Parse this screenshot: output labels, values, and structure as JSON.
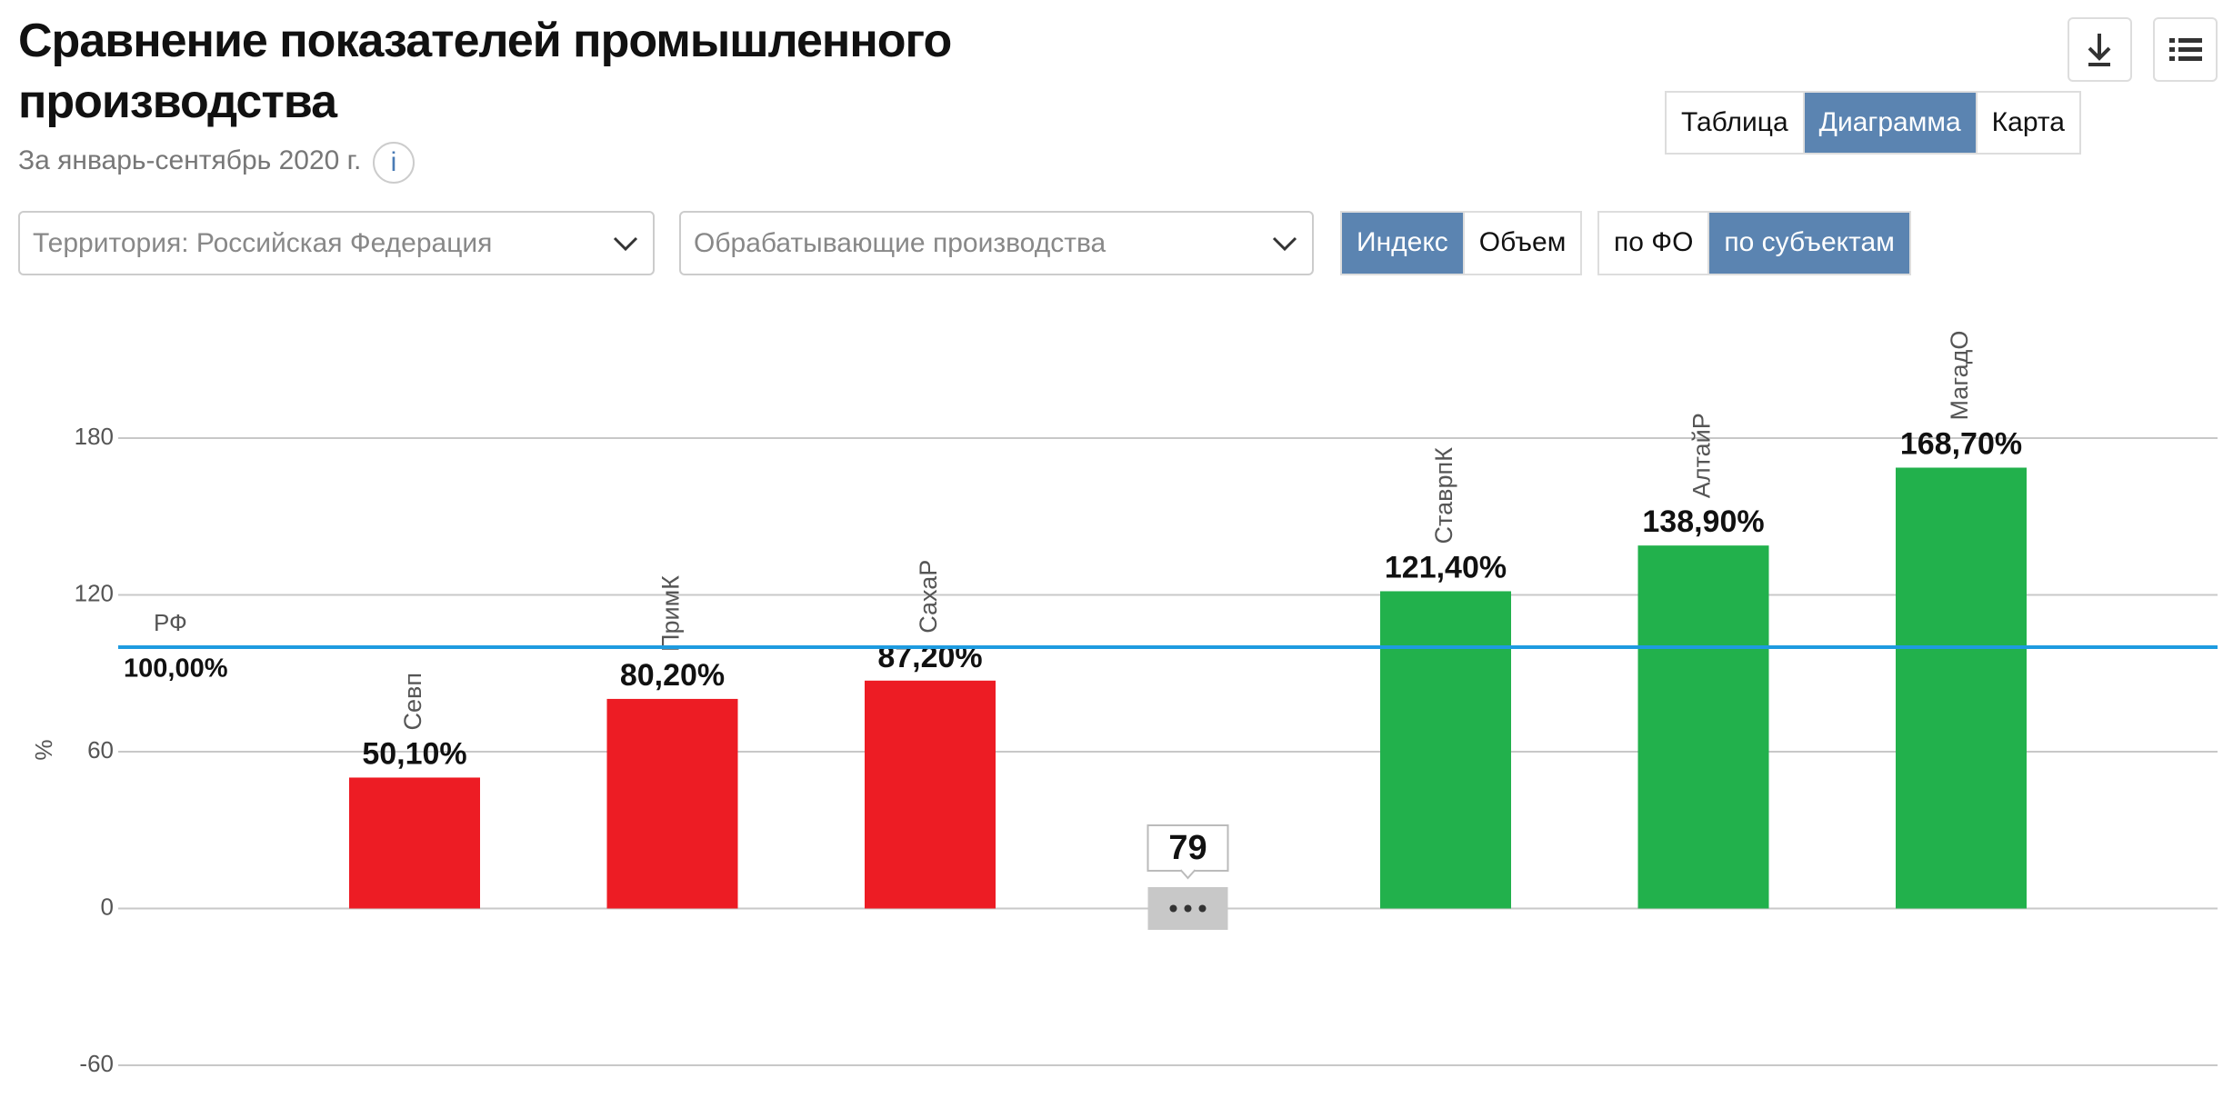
{
  "header": {
    "title": "Сравнение показателей промышленного производства",
    "subtitle": "За январь-сентябрь 2020 г.",
    "info": "i"
  },
  "tabs": [
    {
      "label": "Таблица",
      "active": false
    },
    {
      "label": "Диаграмма",
      "active": true
    },
    {
      "label": "Карта",
      "active": false
    }
  ],
  "filters": {
    "territory": "Территория: Российская  Федерация",
    "industry": "Обрабатывающие производства"
  },
  "measure_toggle": [
    {
      "label": "Индекс",
      "active": true
    },
    {
      "label": "Объем",
      "active": false
    }
  ],
  "level_toggle": [
    {
      "label": "по ФО",
      "active": false
    },
    {
      "label": "по субъектам",
      "active": true
    }
  ],
  "chart_data": {
    "type": "bar",
    "y_label": "%",
    "categories": [
      "Севп",
      "ПримК",
      "СахаР",
      null,
      "СтаврпК",
      "АлтайР",
      "МагадО"
    ],
    "values": [
      50.1,
      80.2,
      87.2,
      null,
      121.4,
      138.9,
      168.7
    ],
    "value_labels": [
      "50,10%",
      "80,20%",
      "87,20%",
      null,
      "121,40%",
      "138,90%",
      "168,70%"
    ],
    "colors": [
      "#ed1c24",
      "#ed1c24",
      "#ed1c24",
      null,
      "#22b14c",
      "#22b14c",
      "#22b14c"
    ],
    "hidden_count": 79,
    "ylim": [
      -60,
      180
    ],
    "yticks": [
      -60,
      0,
      60,
      120,
      180
    ],
    "grid": true,
    "reference": {
      "name": "РФ",
      "value": 100,
      "value_label": "100,00%",
      "color": "#1e9be0"
    }
  }
}
